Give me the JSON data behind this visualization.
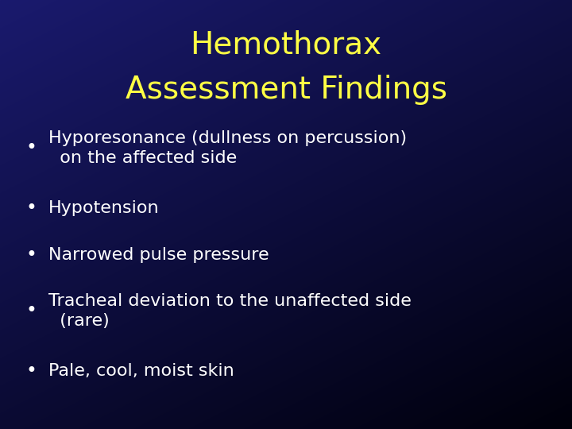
{
  "title_line1": "Hemothorax",
  "title_line2": "Assessment Findings",
  "title_color": "#FFFF44",
  "title_fontsize": 28,
  "bullet_color": "#FFFFFF",
  "bullet_fontsize": 16,
  "bullets": [
    "Hyporesonance (dullness on percussion)\n  on the affected side",
    "Hypotension",
    "Narrowed pulse pressure",
    "Tracheal deviation to the unaffected side\n  (rare)",
    "Pale, cool, moist skin"
  ],
  "bg_color_topleft": "#1a1a6e",
  "bg_color_topright": "#000033",
  "bg_color_bottomleft": "#000010",
  "bg_color_bottomright": "#000005"
}
